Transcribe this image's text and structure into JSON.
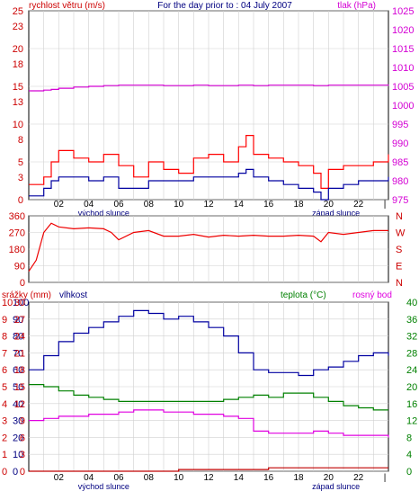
{
  "header": {
    "left_label": "rychlost větru (m/s)",
    "title": "For the day prior to : 04 July 2007",
    "right_label": "tlak (hPa)"
  },
  "time_labels": [
    "02",
    "04",
    "06",
    "08",
    "10",
    "12",
    "14",
    "16",
    "18",
    "20",
    "22",
    "|"
  ],
  "sunrise_label": "východ slunce",
  "sunset_label": "západ slunce",
  "lower_header": {
    "rain": "srážky (mm)",
    "humidity": "vlhkost",
    "temperature": "teplota (°C)",
    "dewpoint": "rosný bod"
  },
  "colors": {
    "wind_speed": "#ff0000",
    "wind_avg": "#0000a0",
    "pressure": "#d400d4",
    "direction": "#ee0000",
    "humidity": "#0000a0",
    "temperature": "#008000",
    "dewpoint": "#e000e0",
    "rain": "#c00000",
    "grid": "#d0d0d0",
    "tick_text_left": "#cc0000",
    "tick_text_green": "#008000"
  },
  "chart_data": [
    {
      "type": "line",
      "title": "For the day prior to : 04 July 2007",
      "ylabel": "rychlost větru (m/s)",
      "y2label": "tlak (hPa)",
      "ylim": [
        0,
        25
      ],
      "y2lim": [
        975,
        1025
      ],
      "x_hours": [
        0,
        1,
        1.5,
        2,
        3,
        4,
        5,
        6,
        7,
        8,
        9,
        10,
        11,
        12,
        13,
        14,
        14.5,
        15,
        16,
        17,
        18,
        19,
        19.5,
        20,
        21,
        22,
        23,
        24
      ],
      "series": [
        {
          "name": "",
          "axis": "left",
          "role": "gust",
          "values": [
            2,
            3,
            5,
            6.5,
            5.5,
            5,
            6,
            4.5,
            3,
            5,
            4,
            3.5,
            5.5,
            6,
            5,
            7,
            8.5,
            6,
            5.5,
            5,
            4.5,
            3.5,
            1.5,
            4,
            4.5,
            4.5,
            5,
            6
          ]
        },
        {
          "name": "",
          "axis": "left",
          "role": "average",
          "values": [
            0.5,
            1.5,
            2.5,
            3,
            3,
            2.5,
            3,
            1.5,
            1.5,
            2.5,
            2.5,
            2.5,
            3,
            3,
            3,
            3.5,
            4,
            3,
            2.5,
            2,
            1.5,
            1,
            0,
            1.5,
            2,
            2.5,
            2.5,
            3
          ]
        },
        {
          "name": "",
          "axis": "right",
          "role": "pressure",
          "values": [
            1003.8,
            1004,
            1004.2,
            1004.5,
            1004.8,
            1005,
            1005.2,
            1005.3,
            1005.3,
            1005.3,
            1005.2,
            1005.2,
            1005.3,
            1005.2,
            1005.2,
            1005.3,
            1005.3,
            1005.2,
            1005.3,
            1005.3,
            1005.3,
            1005.2,
            1005.2,
            1005.3,
            1005.3,
            1005.3,
            1005.3,
            1005.5
          ]
        }
      ]
    },
    {
      "type": "line",
      "ylabel": "",
      "y_ticks": [
        "360",
        "270",
        "180",
        "90",
        "0"
      ],
      "y_compass": [
        "N",
        "W",
        "S",
        "E",
        "N"
      ],
      "ylim": [
        0,
        360
      ],
      "x_hours": [
        0,
        0.5,
        1,
        1.5,
        2,
        3,
        4,
        5,
        5.5,
        6,
        7,
        8,
        9,
        10,
        11,
        12,
        13,
        14,
        15,
        16,
        17,
        18,
        19,
        19.5,
        20,
        21,
        22,
        23,
        24
      ],
      "series": [
        {
          "name": "",
          "role": "direction",
          "values": [
            60,
            120,
            270,
            320,
            300,
            290,
            295,
            290,
            270,
            230,
            270,
            280,
            250,
            250,
            260,
            245,
            255,
            250,
            255,
            250,
            250,
            255,
            250,
            220,
            270,
            260,
            270,
            280,
            280
          ]
        }
      ]
    },
    {
      "type": "line",
      "y_rain_ticks": [
        "10",
        "9",
        "8",
        "7",
        "6",
        "5",
        "4",
        "3",
        "2",
        "1",
        "0"
      ],
      "y_humidity_ticks": [
        "100",
        "90",
        "80",
        "70",
        "60",
        "50",
        "40",
        "30",
        "20",
        "10",
        "0"
      ],
      "y_left_ticks": [
        "30",
        "27",
        "24",
        "21",
        "18",
        "15",
        "12",
        "9",
        "6",
        "3",
        "0"
      ],
      "y_right_ticks": [
        "40",
        "36",
        "32",
        "28",
        "24",
        "20",
        "16",
        "12",
        "8",
        "4",
        "0"
      ],
      "ylim_left": [
        0,
        30
      ],
      "ylim_right": [
        0,
        40
      ],
      "x_hours": [
        0,
        1,
        2,
        3,
        4,
        5,
        6,
        7,
        8,
        9,
        10,
        11,
        12,
        13,
        14,
        15,
        16,
        17,
        18,
        19,
        20,
        21,
        22,
        23,
        24
      ],
      "series": [
        {
          "name": "vlhkost",
          "axis": "left",
          "role": "humidity_scaled",
          "values": [
            18,
            20.5,
            23,
            24.5,
            25.5,
            26.5,
            27.5,
            28.5,
            28,
            27,
            27.5,
            26.5,
            25.5,
            24,
            21,
            18,
            17.5,
            17.5,
            17,
            18,
            18.5,
            19.5,
            20.5,
            21,
            20.5
          ]
        },
        {
          "name": "teplota (°C)",
          "axis": "right",
          "role": "temperature",
          "values": [
            20.5,
            20,
            19,
            18,
            17.5,
            17,
            16.5,
            16.5,
            16.5,
            16.5,
            16.5,
            16.5,
            16.5,
            17,
            17.5,
            18,
            17.5,
            18.5,
            18.5,
            17.5,
            16.5,
            15.5,
            15,
            14.5,
            14.5
          ]
        },
        {
          "name": "rosný bod",
          "axis": "right",
          "role": "dewpoint",
          "values": [
            12,
            12.5,
            13,
            13,
            13.5,
            13.5,
            14,
            14.5,
            14.5,
            14,
            14,
            13.5,
            13.5,
            13,
            12.5,
            9.5,
            9,
            9,
            9,
            9.5,
            9,
            8.5,
            8.5,
            8.5,
            8
          ]
        },
        {
          "name": "srážky (mm)",
          "axis": "rain",
          "role": "rain",
          "values": [
            0,
            0,
            0,
            0,
            0,
            0,
            0,
            0,
            0,
            0,
            0.1,
            0.1,
            0.1,
            0.1,
            0.1,
            0.1,
            0.2,
            0.2,
            0.2,
            0.2,
            0.2,
            0.2,
            0.2,
            0.2,
            0.2
          ]
        }
      ]
    }
  ]
}
